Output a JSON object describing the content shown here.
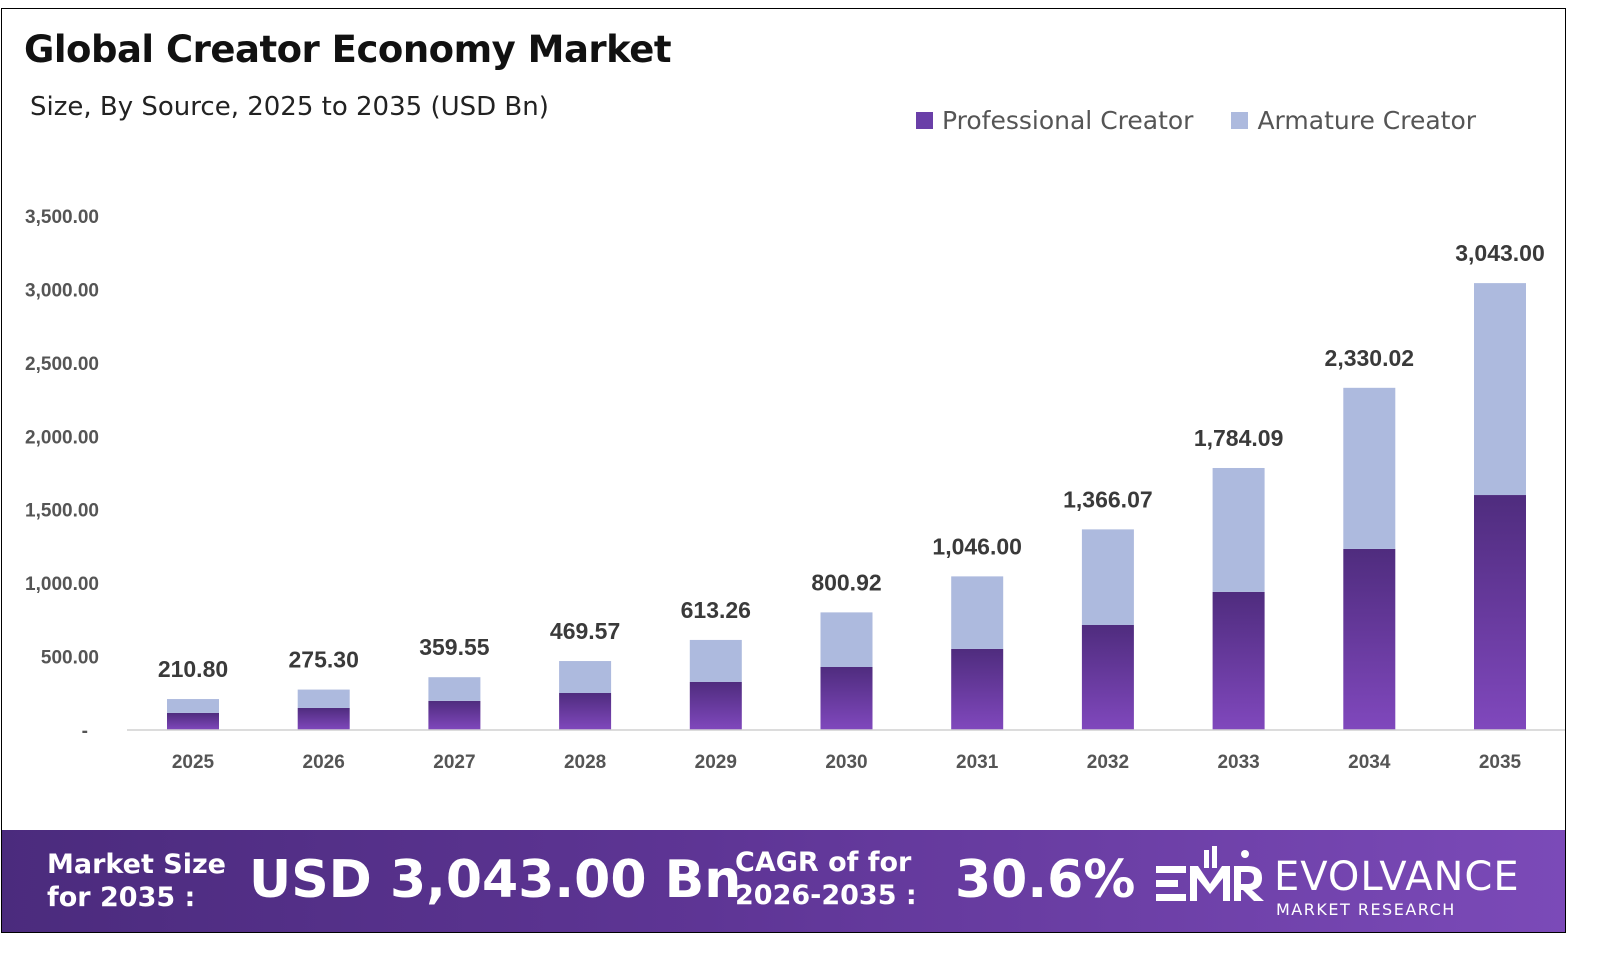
{
  "chart_data": {
    "type": "bar",
    "stacked": true,
    "title": "Global Creator Economy Market",
    "subtitle": "Size, By Source, 2025 to 2035 (USD Bn)",
    "categories": [
      "2025",
      "2026",
      "2027",
      "2028",
      "2029",
      "2030",
      "2031",
      "2032",
      "2033",
      "2034",
      "2035"
    ],
    "series": [
      {
        "name": "Professional Creator",
        "color": "#6a3fa8",
        "values": [
          116,
          150,
          198,
          252,
          327,
          429,
          552,
          715,
          940,
          1233,
          1600
        ]
      },
      {
        "name": "Armature Creator",
        "color": "#adbade",
        "values": [
          94.8,
          125.3,
          161.55,
          217.57,
          286.26,
          371.92,
          494,
          651.07,
          844.09,
          1097.02,
          1443
        ]
      }
    ],
    "totals": [
      210.8,
      275.3,
      359.55,
      469.57,
      613.26,
      800.92,
      1046.0,
      1366.07,
      1784.09,
      2330.02,
      3043.0
    ],
    "total_labels": [
      "210.80",
      "275.30",
      "359.55",
      "469.57",
      "613.26",
      "800.92",
      "1,046.00",
      "1,366.07",
      "1,784.09",
      "2,330.02",
      "3,043.00"
    ],
    "ylim": [
      0,
      3500
    ],
    "yticks": [
      0,
      500,
      1000,
      1500,
      2000,
      2500,
      3000,
      3500
    ],
    "ytick_labels": [
      "-",
      "500.00",
      "1,000.00",
      "1,500.00",
      "2,000.00",
      "2,500.00",
      "3,000.00",
      "3,500.00"
    ],
    "grid": false,
    "legend_position": "top-right"
  },
  "banner": {
    "market_size_label_1": "Market Size",
    "market_size_label_2": "for 2035 :",
    "market_size_value": "USD 3,043.00 Bn",
    "cagr_label_1": "CAGR of for",
    "cagr_label_2": "2026-2035 :",
    "cagr_value": "30.6%",
    "brand_name": "EVOLVANCE",
    "brand_sub": "MARKET RESEARCH",
    "logo_text": "EMR"
  }
}
